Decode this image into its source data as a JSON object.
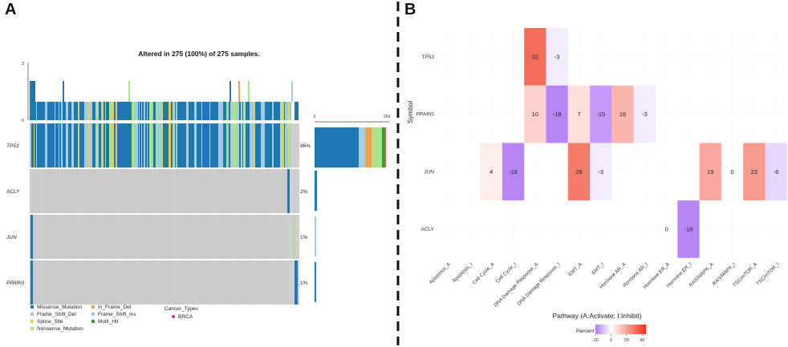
{
  "panel_a": {
    "label": "A",
    "title": "Altered in 275 (100%) of 275 samples.",
    "tmb_ticks": [
      "3",
      "0"
    ],
    "side_ticks": [
      "0",
      "264"
    ],
    "genes": [
      {
        "name": "TP53",
        "pct": "96%"
      },
      {
        "name": "ACLY",
        "pct": "2%"
      },
      {
        "name": "JUN",
        "pct": "1%"
      },
      {
        "name": "PPARG",
        "pct": "1%"
      }
    ],
    "legend": [
      {
        "label": "Missense_Mutation",
        "color": "#1f78b4"
      },
      {
        "label": "Frame_Shift_Del",
        "color": "#a6cee3"
      },
      {
        "label": "Splice_Site",
        "color": "#e6d23c"
      },
      {
        "label": "Nonsense_Mutation",
        "color": "#b2df8a"
      },
      {
        "label": "In_Frame_Del",
        "color": "#f5a04a"
      },
      {
        "label": "Frame_Shift_Ins",
        "color": "#9ec9e2"
      },
      {
        "label": "Multi_Hit",
        "color": "#33a02c"
      }
    ],
    "cancer_types_title": "Cancer_Types",
    "cancer_types": [
      {
        "label": "BRCA",
        "color": "#e7298a"
      }
    ]
  },
  "panel_b": {
    "label": "B",
    "chart_data": {
      "type": "heatmap",
      "ylabel": "Symbol",
      "xlabel": "Pathway (A:Activate; I:Inhibit)",
      "symbols": [
        "TP53",
        "PPARG",
        "JUN",
        "ACLY"
      ],
      "pathways": [
        "Apoptosis_A",
        "Apoptosis_I",
        "Cell Cycle_A",
        "Cell Cycle_I",
        "DNA Damage Response_A",
        "DNA Damage Response_I",
        "EMT_A",
        "EMT_I",
        "Hormone AR_A",
        "Hormone AR_I",
        "Hormone ER_A",
        "Hormone ER_I",
        "RAS/MAPK_A",
        "RAS/MAPK_I",
        "TSC/mTOR_A",
        "TSC/mTOR_I"
      ],
      "cells": [
        {
          "symbol": "TP53",
          "pathway": "DNA Damage Response_A",
          "value": 32
        },
        {
          "symbol": "TP53",
          "pathway": "DNA Damage Response_I",
          "value": -3
        },
        {
          "symbol": "PPARG",
          "pathway": "DNA Damage Response_A",
          "value": 10
        },
        {
          "symbol": "PPARG",
          "pathway": "DNA Damage Response_I",
          "value": -18
        },
        {
          "symbol": "PPARG",
          "pathway": "EMT_A",
          "value": 7
        },
        {
          "symbol": "PPARG",
          "pathway": "EMT_I",
          "value": -15
        },
        {
          "symbol": "PPARG",
          "pathway": "Hormone AR_A",
          "value": 16
        },
        {
          "symbol": "PPARG",
          "pathway": "Hormone AR_I",
          "value": -3
        },
        {
          "symbol": "JUN",
          "pathway": "Cell Cycle_A",
          "value": 4
        },
        {
          "symbol": "JUN",
          "pathway": "Cell Cycle_I",
          "value": -18
        },
        {
          "symbol": "JUN",
          "pathway": "EMT_A",
          "value": 29
        },
        {
          "symbol": "JUN",
          "pathway": "EMT_I",
          "value": -3
        },
        {
          "symbol": "JUN",
          "pathway": "RAS/MAPK_A",
          "value": 19
        },
        {
          "symbol": "JUN",
          "pathway": "RAS/MAPK_I",
          "value": 0
        },
        {
          "symbol": "JUN",
          "pathway": "TSC/mTOR_A",
          "value": 22
        },
        {
          "symbol": "JUN",
          "pathway": "TSC/mTOR_I",
          "value": -6
        },
        {
          "symbol": "ACLY",
          "pathway": "Hormone ER_A",
          "value": 0
        },
        {
          "symbol": "ACLY",
          "pathway": "Hormone ER_I",
          "value": -18
        }
      ],
      "legend_title": "Percent",
      "legend_ticks": [
        "-20",
        "0",
        "20",
        "40"
      ],
      "color_range": [
        -20,
        45
      ],
      "colors": {
        "low": "#b07af5",
        "mid": "#ffffff",
        "high": "#f03218"
      }
    }
  }
}
